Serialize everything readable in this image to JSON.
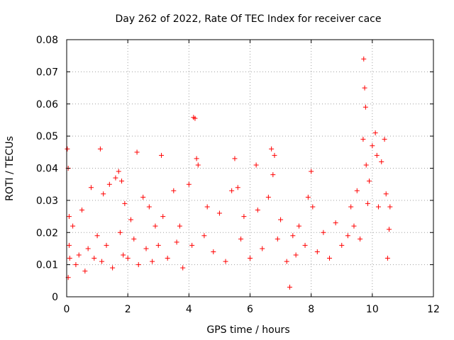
{
  "chart_data": {
    "type": "scatter",
    "title": "Day 262 of 2022, Rate Of TEC Index for receiver cace",
    "xlabel": "GPS time / hours",
    "ylabel": "ROTI / TECUs",
    "xlim": [
      0,
      12
    ],
    "ylim": [
      0,
      0.08
    ],
    "grid": true,
    "marker": "+",
    "color": "#ff0000",
    "x_ticks": [
      0,
      2,
      4,
      6,
      8,
      10,
      12
    ],
    "x_tick_labels": [
      "0",
      "2",
      "4",
      "6",
      "8",
      "10",
      "12"
    ],
    "y_ticks": [
      0,
      0.01,
      0.02,
      0.03,
      0.04,
      0.05,
      0.06,
      0.07,
      0.08
    ],
    "y_tick_labels": [
      "0",
      "0.01",
      "0.02",
      "0.03",
      "0.04",
      "0.05",
      "0.06",
      "0.07",
      "0.08"
    ],
    "series": [
      {
        "name": "ROTI",
        "x": [
          0.02,
          0.05,
          0.08,
          0.1,
          0.05,
          0.08,
          0.2,
          0.3,
          0.4,
          0.5,
          0.6,
          0.7,
          0.8,
          0.9,
          1.0,
          1.1,
          1.15,
          1.2,
          1.3,
          1.4,
          1.5,
          1.6,
          1.7,
          1.75,
          1.8,
          1.85,
          1.9,
          2.0,
          2.1,
          2.2,
          2.3,
          2.35,
          2.5,
          2.6,
          2.7,
          2.8,
          2.9,
          3.0,
          3.1,
          3.15,
          3.3,
          3.5,
          3.6,
          3.7,
          3.8,
          4.0,
          4.1,
          4.15,
          4.2,
          4.25,
          4.3,
          4.5,
          4.6,
          4.8,
          5.0,
          5.2,
          5.4,
          5.5,
          5.6,
          5.7,
          5.8,
          6.0,
          6.2,
          6.25,
          6.4,
          6.6,
          6.7,
          6.75,
          6.8,
          6.9,
          7.0,
          7.2,
          7.3,
          7.4,
          7.5,
          7.6,
          7.8,
          7.9,
          8.0,
          8.05,
          8.2,
          8.4,
          8.6,
          8.8,
          9.0,
          9.2,
          9.3,
          9.4,
          9.5,
          9.6,
          9.7,
          9.72,
          9.75,
          9.78,
          9.8,
          9.85,
          9.9,
          10.0,
          10.1,
          10.15,
          10.2,
          10.3,
          10.4,
          10.45,
          10.5,
          10.55,
          10.58
        ],
        "y": [
          0.046,
          0.04,
          0.025,
          0.012,
          0.006,
          0.016,
          0.022,
          0.01,
          0.013,
          0.027,
          0.008,
          0.015,
          0.034,
          0.012,
          0.019,
          0.046,
          0.011,
          0.032,
          0.016,
          0.035,
          0.009,
          0.037,
          0.039,
          0.02,
          0.036,
          0.013,
          0.029,
          0.012,
          0.024,
          0.018,
          0.045,
          0.01,
          0.031,
          0.015,
          0.028,
          0.011,
          0.022,
          0.016,
          0.044,
          0.025,
          0.012,
          0.033,
          0.017,
          0.022,
          0.009,
          0.035,
          0.016,
          0.0558,
          0.0555,
          0.043,
          0.041,
          0.019,
          0.028,
          0.014,
          0.026,
          0.011,
          0.033,
          0.043,
          0.034,
          0.018,
          0.025,
          0.012,
          0.041,
          0.027,
          0.015,
          0.031,
          0.046,
          0.038,
          0.044,
          0.018,
          0.024,
          0.011,
          0.003,
          0.019,
          0.013,
          0.022,
          0.016,
          0.031,
          0.039,
          0.028,
          0.014,
          0.02,
          0.012,
          0.023,
          0.016,
          0.019,
          0.028,
          0.022,
          0.033,
          0.018,
          0.049,
          0.074,
          0.065,
          0.059,
          0.041,
          0.029,
          0.036,
          0.047,
          0.051,
          0.044,
          0.028,
          0.042,
          0.049,
          0.032,
          0.012,
          0.021,
          0.028
        ]
      }
    ]
  }
}
